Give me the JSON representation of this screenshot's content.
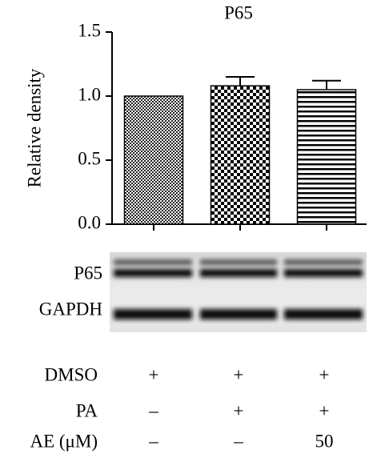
{
  "chart_data": {
    "type": "bar",
    "title": "P65",
    "y_label": "Relative density",
    "categories": [
      null,
      null,
      null
    ],
    "values": [
      1.0,
      1.08,
      1.05
    ],
    "errors": [
      null,
      0.07,
      0.07
    ],
    "color": "#000000",
    "ylim": [
      0,
      1.5
    ],
    "yticks": [
      {
        "value": 0,
        "label": "0.0"
      },
      0.5,
      {
        "value": 1,
        "label": "1.0"
      },
      1.5
    ]
  },
  "blot": {
    "labels": [
      "P65",
      "GAPDH"
    ]
  },
  "conditions": {
    "rows": [
      {
        "label": "DMSO",
        "cells": [
          "+",
          "+",
          "+"
        ]
      },
      {
        "label": "PA",
        "cells": [
          "–",
          "+",
          "+"
        ]
      },
      {
        "label": "AE (μM)",
        "cells": [
          "–",
          "–",
          "50"
        ]
      }
    ]
  }
}
